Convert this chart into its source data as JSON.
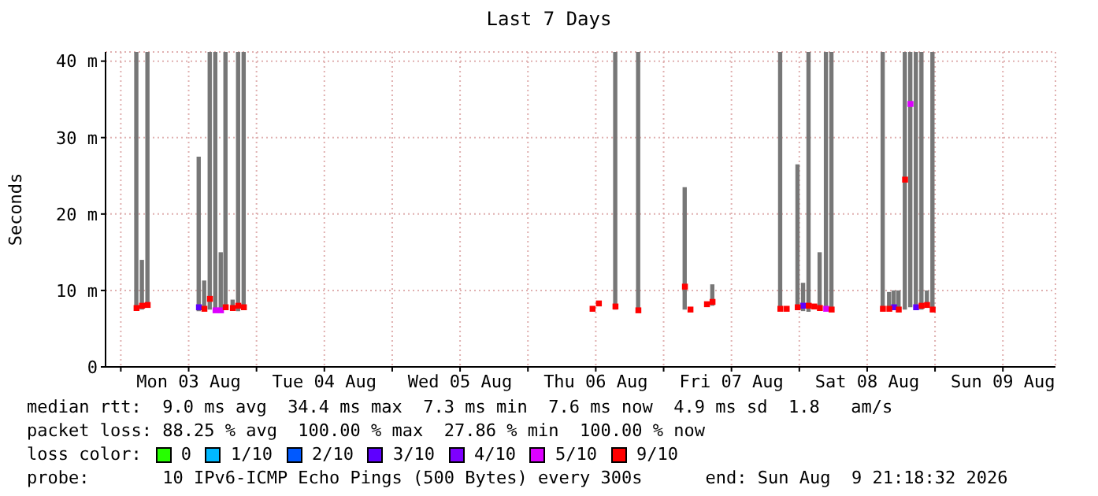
{
  "chart_data": {
    "type": "bar",
    "title": "Last 7 Days",
    "ylabel": "Seconds",
    "x": [
      "2026-08-03T02:47",
      "2026-08-03T03:46",
      "2026-08-03T04:45",
      "2026-08-03T13:49",
      "2026-08-03T14:47",
      "2026-08-03T15:46",
      "2026-08-03T16:45",
      "2026-08-03T17:43",
      "2026-08-03T18:33",
      "2026-08-03T19:49",
      "2026-08-03T20:47",
      "2026-08-03T21:46",
      "2026-08-06T11:26",
      "2026-08-06T12:33",
      "2026-08-06T15:29",
      "2026-08-06T19:32",
      "2026-08-07T03:46",
      "2026-08-07T04:45",
      "2026-08-07T07:40",
      "2026-08-07T08:39",
      "2026-08-07T20:39",
      "2026-08-07T21:46",
      "2026-08-07T23:43",
      "2026-08-08T00:42",
      "2026-08-08T01:40",
      "2026-08-08T02:39",
      "2026-08-08T03:38",
      "2026-08-08T04:45",
      "2026-08-08T05:43",
      "2026-08-08T14:47",
      "2026-08-08T15:55",
      "2026-08-08T16:45",
      "2026-08-08T17:35",
      "2026-08-08T18:42",
      "2026-08-08T19:40",
      "2026-08-08T20:39",
      "2026-08-08T21:38",
      "2026-08-08T22:36",
      "2026-08-08T23:35"
    ],
    "series": [
      {
        "color": "#777777",
        "base": [
          7.5,
          7.5,
          7.8,
          7.3,
          7.3,
          7.5,
          7.3,
          7.3,
          7.5,
          7.5,
          7.3,
          7.7,
          null,
          null,
          7.5,
          7.3,
          7.5,
          null,
          null,
          8.0,
          7.3,
          null,
          7.6,
          7.3,
          7.2,
          null,
          7.5,
          7.5,
          7.3,
          7.3,
          7.5,
          7.5,
          7.3,
          7.5,
          7.8,
          7.5,
          7.5,
          7.8,
          7.3
        ],
        "values": [
          33.7,
          6.5,
          33.4,
          20.2,
          4.0,
          33.7,
          33.9,
          7.7,
          33.7,
          1.3,
          33.9,
          33.5,
          null,
          null,
          33.7,
          33.9,
          16.0,
          null,
          null,
          2.8,
          33.9,
          null,
          18.9,
          3.7,
          34.0,
          null,
          7.5,
          33.7,
          33.9,
          33.9,
          2.3,
          2.5,
          2.7,
          33.7,
          33.4,
          33.7,
          33.7,
          2.2,
          33.9
        ]
      },
      {
        "type": "scatter",
        "name": "0",
        "color": "#26ff00",
        "values": [
          null,
          null,
          null,
          null,
          null,
          null,
          null,
          null,
          null,
          null,
          null,
          null,
          null,
          null,
          null,
          null,
          null,
          null,
          null,
          null,
          null,
          null,
          null,
          null,
          null,
          null,
          null,
          null,
          null,
          null,
          null,
          null,
          null,
          null,
          null,
          null,
          null,
          null,
          null
        ]
      },
      {
        "type": "scatter",
        "name": "1/10",
        "color": "#00b8ff",
        "values": [
          null,
          null,
          null,
          null,
          null,
          null,
          null,
          null,
          null,
          null,
          null,
          null,
          null,
          null,
          null,
          null,
          null,
          null,
          null,
          null,
          null,
          null,
          null,
          null,
          null,
          null,
          null,
          null,
          null,
          null,
          null,
          null,
          null,
          null,
          null,
          null,
          null,
          null,
          null
        ]
      },
      {
        "type": "scatter",
        "name": "2/10",
        "color": "#0059ff",
        "values": [
          null,
          null,
          null,
          null,
          null,
          null,
          null,
          null,
          null,
          null,
          null,
          null,
          null,
          null,
          null,
          null,
          null,
          null,
          null,
          null,
          null,
          null,
          null,
          null,
          null,
          null,
          null,
          null,
          null,
          null,
          null,
          null,
          null,
          null,
          null,
          null,
          null,
          null,
          null
        ]
      },
      {
        "type": "scatter",
        "name": "3/10",
        "color": "#5e00ff",
        "x": [
          "2026-08-03T13:49",
          "2026-08-08T00:42",
          "2026-08-08T16:45",
          "2026-08-08T20:39"
        ],
        "values": [
          7.8,
          8.0,
          7.8,
          7.8
        ]
      },
      {
        "type": "scatter",
        "name": "4/10",
        "color": "#7e00ff",
        "values": [
          null,
          null,
          null,
          null,
          null,
          null,
          null,
          null,
          null,
          null,
          null,
          null,
          null,
          null,
          null,
          null,
          null,
          null,
          null,
          null,
          null,
          null,
          null,
          null,
          null,
          null,
          null,
          null,
          null,
          null,
          null,
          null,
          null,
          null,
          null,
          null,
          null,
          null,
          null
        ]
      },
      {
        "type": "scatter",
        "name": "5/10",
        "color": "#dd00ff",
        "x": [
          "2026-08-03T16:45",
          "2026-08-03T17:43",
          "2026-08-08T04:45",
          "2026-08-08T19:40"
        ],
        "values": [
          7.4,
          7.4,
          7.6,
          34.4
        ]
      },
      {
        "type": "scatter",
        "name": "9/10",
        "color": "#ff0000",
        "x": [
          "2026-08-03T02:47",
          "2026-08-03T03:46",
          "2026-08-03T04:45",
          "2026-08-03T14:47",
          "2026-08-03T15:46",
          "2026-08-03T18:33",
          "2026-08-03T19:49",
          "2026-08-03T20:47",
          "2026-08-03T21:46",
          "2026-08-06T11:26",
          "2026-08-06T12:33",
          "2026-08-06T15:29",
          "2026-08-06T19:32",
          "2026-08-07T03:46",
          "2026-08-07T04:45",
          "2026-08-07T07:40",
          "2026-08-07T08:39",
          "2026-08-07T20:39",
          "2026-08-07T21:46",
          "2026-08-07T23:43",
          "2026-08-08T01:40",
          "2026-08-08T02:39",
          "2026-08-08T03:38",
          "2026-08-08T05:43",
          "2026-08-08T14:47",
          "2026-08-08T15:55",
          "2026-08-08T17:35",
          "2026-08-08T18:42",
          "2026-08-08T21:38",
          "2026-08-08T22:36",
          "2026-08-08T23:35"
        ],
        "values": [
          7.7,
          8.0,
          8.1,
          7.6,
          8.9,
          7.8,
          7.7,
          8.0,
          7.8,
          7.6,
          8.3,
          7.9,
          7.4,
          10.5,
          7.5,
          8.2,
          8.5,
          7.6,
          7.6,
          7.8,
          8.0,
          7.9,
          7.7,
          7.5,
          7.6,
          7.6,
          7.5,
          24.5,
          8.0,
          8.1,
          7.5
        ]
      }
    ],
    "marker": "square",
    "xlim": [
      "2026-08-02T21:18",
      "2026-08-09T21:18"
    ],
    "xticks": [
      {
        "value": "2026-08-03T00:00",
        "label": null
      },
      {
        "value": "2026-08-03T12:00",
        "label": "Mon 03 Aug"
      },
      {
        "value": "2026-08-04T00:00",
        "label": null
      },
      {
        "value": "2026-08-04T12:00",
        "label": "Tue 04 Aug"
      },
      {
        "value": "2026-08-05T00:00",
        "label": null
      },
      {
        "value": "2026-08-05T12:00",
        "label": "Wed 05 Aug"
      },
      {
        "value": "2026-08-06T00:00",
        "label": null
      },
      {
        "value": "2026-08-06T12:00",
        "label": "Thu 06 Aug"
      },
      {
        "value": "2026-08-07T00:00",
        "label": null
      },
      {
        "value": "2026-08-07T12:00",
        "label": "Fri 07 Aug"
      },
      {
        "value": "2026-08-08T00:00",
        "label": null
      },
      {
        "value": "2026-08-08T12:00",
        "label": "Sat 08 Aug"
      },
      {
        "value": "2026-08-09T00:00",
        "label": null
      },
      {
        "value": "2026-08-09T12:00",
        "label": "Sun 09 Aug"
      }
    ],
    "ylim": [
      0,
      41.2
    ],
    "yticks": [
      0,
      {
        "value": 10,
        "label": "10 m"
      },
      {
        "value": 20,
        "label": "20 m"
      },
      {
        "value": 30,
        "label": "30 m"
      },
      {
        "value": 40,
        "label": "40 m"
      }
    ],
    "grid": true,
    "legend": "bottom",
    "legend_title": "loss color:",
    "annotations": [
      "median rtt:  9.0 ms avg  34.4 ms max  7.3 ms min  7.6 ms now  4.9 ms sd  1.8   am/s",
      "packet loss: 88.25 % avg  100.00 % max  27.86 % min  100.00 % now",
      "probe:       10 IPv6-ICMP Echo Pings (500 Bytes) every 300s",
      "end: Sun Aug  9 21:18:32 2026"
    ]
  }
}
